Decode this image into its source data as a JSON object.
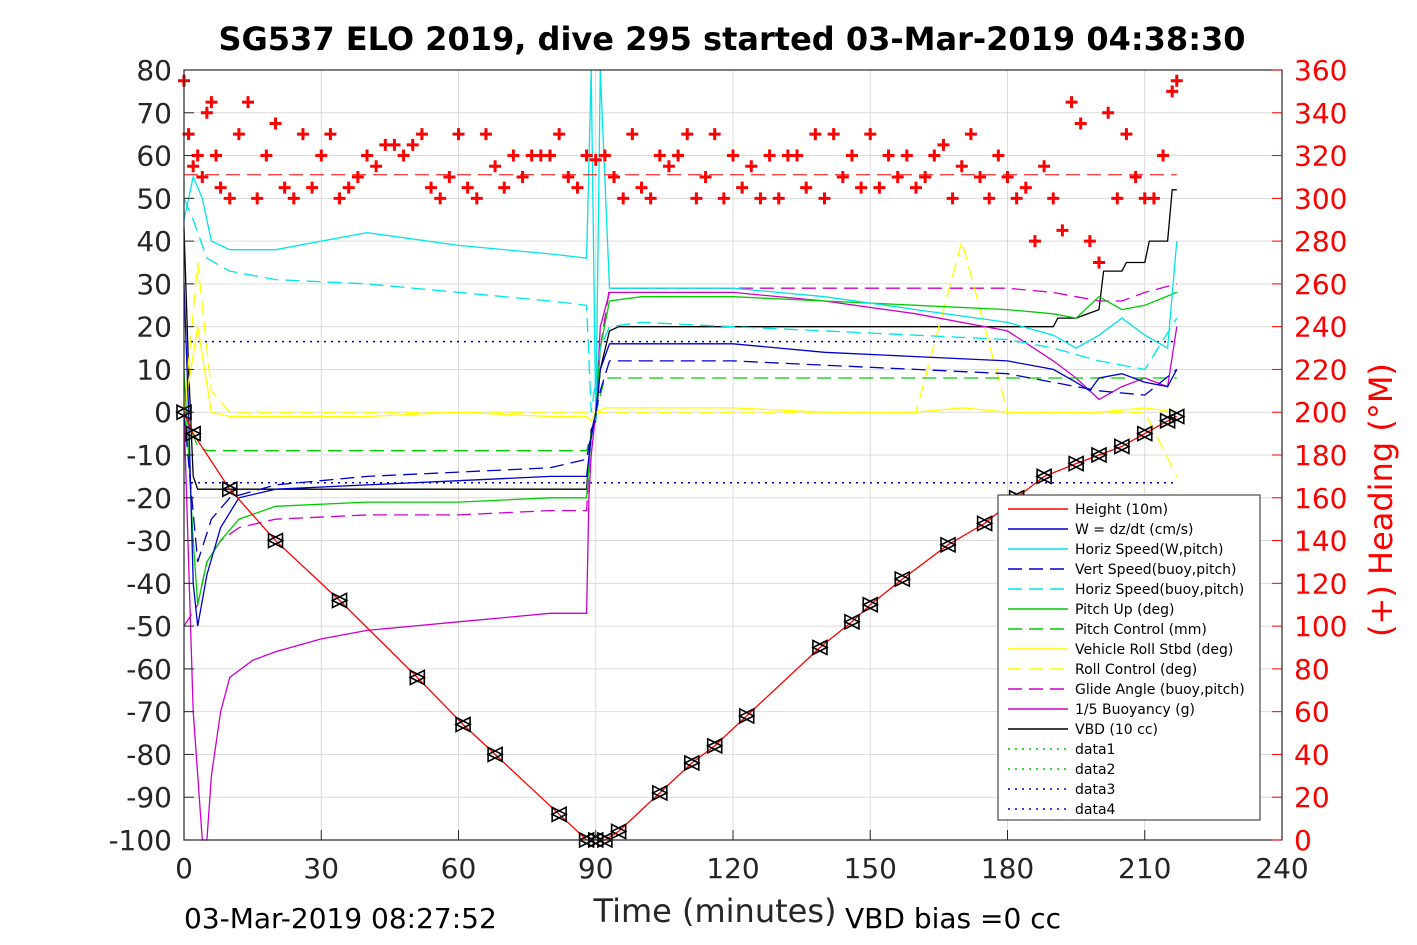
{
  "chart_data": {
    "type": "line",
    "title": "SG537 ELO 2019, dive 295 started 03-Mar-2019 04:38:30",
    "xlabel": "Time (minutes)",
    "ylabel_right": "(+) Heading (°M)",
    "footer_left": "03-Mar-2019 08:27:52",
    "footer_right": "VBD bias =0 cc",
    "xlim": [
      0,
      240
    ],
    "ylim_left": [
      -100,
      80
    ],
    "ylim_right": [
      0,
      360
    ],
    "x_ticks": [
      0,
      30,
      60,
      90,
      120,
      150,
      180,
      210,
      240
    ],
    "y_left_ticks": [
      80,
      70,
      60,
      50,
      40,
      30,
      20,
      10,
      0,
      -10,
      -20,
      -30,
      -40,
      -50,
      -60,
      -70,
      -80,
      -90,
      -100
    ],
    "y_right_ticks": [
      360,
      340,
      320,
      300,
      280,
      260,
      240,
      220,
      200,
      180,
      160,
      140,
      120,
      100,
      80,
      60,
      40,
      20,
      0
    ],
    "grid": true,
    "legend_position": "lower-right",
    "series": [
      {
        "name": "Height (10m)",
        "color": "#ff0000",
        "style": "solid",
        "axis": "left",
        "x": [
          0,
          2,
          10,
          20,
          34,
          51,
          61,
          68,
          82,
          88,
          90,
          92,
          95,
          104,
          111,
          116,
          123,
          139,
          146,
          150,
          157,
          167,
          175,
          182,
          188,
          195,
          200,
          205,
          210,
          215,
          217
        ],
        "y": [
          0,
          -5,
          -18,
          -30,
          -44,
          -62,
          -73,
          -80,
          -94,
          -100,
          -100,
          -100,
          -98,
          -89,
          -82,
          -78,
          -71,
          -55,
          -49,
          -45,
          -39,
          -31,
          -26,
          -20,
          -15,
          -12,
          -10,
          -8,
          -5,
          -2,
          -1
        ]
      },
      {
        "name": "W = dz/dt (cm/s)",
        "color": "#0000cc",
        "style": "solid",
        "axis": "left",
        "x": [
          0,
          1,
          2,
          3,
          5,
          8,
          12,
          20,
          40,
          60,
          80,
          88,
          89,
          90,
          91,
          93,
          100,
          120,
          140,
          160,
          180,
          190,
          195,
          198,
          200,
          205,
          210,
          215,
          217
        ],
        "y": [
          30,
          0,
          -40,
          -50,
          -38,
          -27,
          -20,
          -18,
          -17,
          -16,
          -15,
          -15,
          -6,
          0,
          10,
          16,
          16,
          16,
          14,
          13,
          12,
          10,
          7,
          5,
          8,
          9,
          7,
          6,
          10
        ]
      },
      {
        "name": "Horiz Speed(W,pitch)",
        "color": "#00e5e5",
        "style": "solid",
        "axis": "left",
        "x": [
          0,
          2,
          4,
          6,
          10,
          20,
          40,
          60,
          80,
          88,
          89,
          90,
          91,
          93,
          100,
          120,
          140,
          160,
          180,
          190,
          195,
          200,
          205,
          210,
          215,
          217
        ],
        "y": [
          45,
          55,
          50,
          40,
          38,
          38,
          42,
          39,
          37,
          36,
          80,
          -2,
          80,
          29,
          29,
          29,
          27,
          24,
          21,
          18,
          15,
          18,
          22,
          18,
          15,
          40
        ]
      },
      {
        "name": "Vert Speed(buoy,pitch)",
        "color": "#0000cc",
        "style": "dash",
        "axis": "left",
        "x": [
          0,
          3,
          6,
          10,
          20,
          40,
          60,
          80,
          88,
          89,
          91,
          93,
          100,
          120,
          140,
          160,
          180,
          195,
          200,
          210,
          217
        ],
        "y": [
          0,
          -35,
          -25,
          -20,
          -17,
          -15,
          -14,
          -13,
          -11,
          -5,
          5,
          12,
          12,
          12,
          11,
          10,
          9,
          6,
          5,
          4,
          10
        ]
      },
      {
        "name": "Horiz Speed(buoy,pitch)",
        "color": "#00e5e5",
        "style": "dash",
        "axis": "left",
        "x": [
          0,
          2,
          5,
          10,
          20,
          40,
          60,
          80,
          88,
          89,
          91,
          93,
          100,
          120,
          140,
          160,
          180,
          190,
          200,
          210,
          217
        ],
        "y": [
          50,
          45,
          36,
          33,
          31,
          30,
          28,
          26,
          25,
          0,
          15,
          20,
          21,
          20,
          19,
          18,
          17,
          15,
          12,
          10,
          22
        ]
      },
      {
        "name": "Pitch Up (deg)",
        "color": "#00cc00",
        "style": "solid",
        "axis": "left",
        "x": [
          0,
          2,
          3,
          5,
          8,
          12,
          20,
          40,
          60,
          80,
          88,
          89,
          90,
          91,
          93,
          100,
          120,
          140,
          160,
          180,
          190,
          195,
          200,
          205,
          210,
          217
        ],
        "y": [
          10,
          -30,
          -45,
          -35,
          -30,
          -25,
          -22,
          -21,
          -21,
          -20,
          -20,
          -5,
          0,
          15,
          26,
          27,
          27,
          26,
          25,
          24,
          23,
          22,
          27,
          24,
          25,
          28
        ]
      },
      {
        "name": "Pitch Control (mm)",
        "color": "#00cc00",
        "style": "dash",
        "axis": "left",
        "x": [
          0,
          3,
          5,
          10,
          20,
          40,
          60,
          80,
          88,
          89,
          90,
          92,
          100,
          120,
          140,
          160,
          180,
          190,
          200,
          210,
          217
        ],
        "y": [
          0,
          -8,
          -9,
          -9,
          -9,
          -9,
          -9,
          -9,
          -9,
          -5,
          0,
          8,
          8,
          8,
          8,
          8,
          8,
          8,
          8,
          8,
          8
        ]
      },
      {
        "name": "Vehicle Roll Stbd (deg)",
        "color": "#ffff00",
        "style": "solid",
        "axis": "left",
        "x": [
          0,
          3,
          6,
          10,
          20,
          40,
          60,
          80,
          88,
          89,
          90,
          92,
          100,
          120,
          140,
          160,
          170,
          180,
          190,
          200,
          210,
          217
        ],
        "y": [
          0,
          20,
          0,
          -1,
          -1,
          -1,
          0,
          -1,
          -1,
          -2,
          0,
          1,
          1,
          1,
          0,
          0,
          1,
          0,
          0,
          0,
          1,
          0
        ]
      },
      {
        "name": "Roll Control (deg)",
        "color": "#ffff00",
        "style": "dash",
        "axis": "left",
        "x": [
          0,
          3,
          6,
          10,
          20,
          40,
          60,
          80,
          88,
          89,
          90,
          92,
          100,
          120,
          140,
          160,
          170,
          180,
          190,
          200,
          210,
          217
        ],
        "y": [
          0,
          35,
          5,
          0,
          0,
          0,
          0,
          0,
          0,
          0,
          0,
          0,
          0,
          0,
          0,
          0,
          40,
          0,
          0,
          0,
          0,
          -15
        ]
      },
      {
        "name": "Glide Angle (buoy,pitch)",
        "color": "#cc00cc",
        "style": "dash",
        "axis": "left",
        "x": [
          0,
          3,
          5,
          8,
          12,
          20,
          40,
          60,
          80,
          88,
          89,
          90,
          91,
          93,
          100,
          120,
          140,
          160,
          180,
          190,
          195,
          200,
          205,
          210,
          217
        ],
        "y": [
          -50,
          -45,
          -35,
          -30,
          -27,
          -25,
          -24,
          -24,
          -23,
          -23,
          -5,
          0,
          15,
          29,
          29,
          29,
          29,
          29,
          29,
          28,
          27,
          26,
          26,
          28,
          30
        ]
      },
      {
        "name": "1/5 Buoyancy (g)",
        "color": "#cc00cc",
        "style": "solid",
        "axis": "left",
        "x": [
          0,
          2,
          4,
          5,
          6,
          8,
          10,
          15,
          20,
          30,
          40,
          50,
          60,
          70,
          80,
          88,
          88.5,
          89,
          90,
          91,
          93,
          100,
          120,
          140,
          160,
          180,
          190,
          195,
          200,
          205,
          210,
          215,
          217
        ],
        "y": [
          0,
          -70,
          -100,
          -100,
          -85,
          -70,
          -62,
          -58,
          -56,
          -53,
          -51,
          -50,
          -49,
          -48,
          -47,
          -47,
          -20,
          -10,
          0,
          20,
          28,
          28,
          28,
          26,
          23,
          19,
          12,
          8,
          3,
          6,
          8,
          6,
          20
        ]
      },
      {
        "name": "VBD (10 cc)",
        "color": "#000000",
        "style": "solid",
        "axis": "left",
        "x": [
          0,
          1,
          2,
          3,
          5,
          10,
          20,
          40,
          60,
          80,
          88,
          89,
          90,
          91,
          93,
          95,
          100,
          120,
          140,
          160,
          180,
          190,
          191,
          195,
          200,
          201,
          205,
          206,
          210,
          211,
          215,
          216,
          217
        ],
        "y": [
          43,
          10,
          -15,
          -18,
          -18,
          -18,
          -18,
          -18,
          -18,
          -18,
          -18,
          -4,
          -2,
          10,
          19,
          20,
          20,
          20,
          20,
          20,
          20,
          20,
          22,
          22,
          24,
          33,
          33,
          35,
          35,
          40,
          40,
          52,
          52
        ]
      },
      {
        "name": "data1",
        "color": "#00cc00",
        "style": "dot",
        "axis": "left",
        "x": [],
        "y": []
      },
      {
        "name": "data2",
        "color": "#00cc00",
        "style": "dot",
        "axis": "left",
        "x": [],
        "y": []
      },
      {
        "name": "data3",
        "color": "#0000cc",
        "style": "dot",
        "axis": "left",
        "x": [
          0,
          217
        ],
        "y": [
          16.5,
          16.5
        ]
      },
      {
        "name": "data4",
        "color": "#0000cc",
        "style": "dot",
        "axis": "left",
        "x": [
          0,
          217
        ],
        "y": [
          -16.5,
          -16.5
        ]
      }
    ],
    "heading": {
      "name": "(+) Heading",
      "color": "#ff0000",
      "axis": "right",
      "mean_line": 311,
      "x": [
        0,
        1,
        2,
        3,
        4,
        5,
        6,
        7,
        8,
        10,
        12,
        14,
        16,
        18,
        20,
        22,
        24,
        26,
        28,
        30,
        32,
        34,
        36,
        38,
        40,
        42,
        44,
        46,
        48,
        50,
        52,
        54,
        56,
        58,
        60,
        62,
        64,
        66,
        68,
        70,
        72,
        74,
        76,
        78,
        80,
        82,
        84,
        86,
        88,
        90,
        92,
        94,
        96,
        98,
        100,
        102,
        104,
        106,
        108,
        110,
        112,
        114,
        116,
        118,
        120,
        122,
        124,
        126,
        128,
        130,
        132,
        134,
        136,
        138,
        140,
        142,
        144,
        146,
        148,
        150,
        152,
        154,
        156,
        158,
        160,
        162,
        164,
        166,
        168,
        170,
        172,
        174,
        176,
        178,
        180,
        182,
        184,
        186,
        188,
        190,
        192,
        194,
        196,
        198,
        200,
        202,
        204,
        206,
        208,
        210,
        212,
        214,
        216,
        217
      ],
      "y": [
        355,
        330,
        315,
        320,
        310,
        340,
        345,
        320,
        305,
        300,
        330,
        345,
        300,
        320,
        335,
        305,
        300,
        330,
        305,
        320,
        330,
        300,
        305,
        310,
        320,
        315,
        325,
        325,
        320,
        325,
        330,
        305,
        300,
        310,
        330,
        305,
        300,
        330,
        315,
        305,
        320,
        310,
        320,
        320,
        320,
        330,
        310,
        305,
        320,
        318,
        320,
        310,
        300,
        330,
        305,
        300,
        320,
        315,
        320,
        330,
        300,
        310,
        330,
        300,
        320,
        305,
        315,
        300,
        320,
        300,
        320,
        320,
        305,
        330,
        300,
        330,
        310,
        320,
        305,
        330,
        305,
        320,
        310,
        320,
        305,
        310,
        320,
        325,
        300,
        315,
        330,
        310,
        300,
        320,
        310,
        300,
        305,
        280,
        315,
        300,
        285,
        345,
        335,
        280,
        270,
        340,
        300,
        330,
        310,
        300,
        300,
        320,
        350,
        355
      ]
    }
  }
}
